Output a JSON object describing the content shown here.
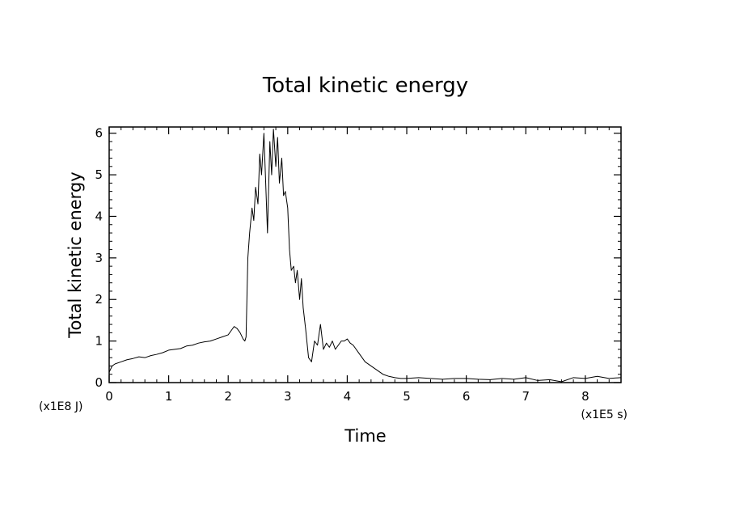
{
  "chart_data": {
    "type": "line",
    "title": "Total kinetic energy",
    "xlabel": "Time",
    "ylabel": "Total kinetic energy",
    "x_multiplier_label": "(x1E5 s)",
    "y_multiplier_label": "(x1E8 J)",
    "xlim": [
      0,
      8.6
    ],
    "ylim": [
      0,
      6.15
    ],
    "x_ticks": [
      "0",
      "1",
      "2",
      "3",
      "4",
      "5",
      "6",
      "7",
      "8"
    ],
    "y_ticks": [
      "0",
      "1",
      "2",
      "3",
      "4",
      "5",
      "6"
    ],
    "grid": false,
    "legend": "none",
    "line_color": "#000000",
    "series": [
      {
        "x": [
          0.0,
          0.05,
          0.1,
          0.2,
          0.3,
          0.4,
          0.5,
          0.6,
          0.7,
          0.8,
          0.9,
          1.0,
          1.1,
          1.2,
          1.3,
          1.4,
          1.5,
          1.6,
          1.7,
          1.8,
          1.9,
          2.0,
          2.05,
          2.1,
          2.15,
          2.2,
          2.25,
          2.28,
          2.3,
          2.33,
          2.36,
          2.4,
          2.43,
          2.46,
          2.5,
          2.53,
          2.56,
          2.6,
          2.63,
          2.66,
          2.7,
          2.73,
          2.76,
          2.8,
          2.83,
          2.86,
          2.9,
          2.93,
          2.96,
          3.0,
          3.03,
          3.06,
          3.1,
          3.13,
          3.16,
          3.2,
          3.23,
          3.26,
          3.3,
          3.35,
          3.4,
          3.45,
          3.5,
          3.55,
          3.6,
          3.65,
          3.7,
          3.75,
          3.8,
          3.85,
          3.9,
          3.95,
          4.0,
          4.05,
          4.1,
          4.2,
          4.3,
          4.4,
          4.5,
          4.6,
          4.7,
          4.8,
          4.9,
          5.0,
          5.2,
          5.4,
          5.6,
          5.8,
          6.0,
          6.2,
          6.4,
          6.6,
          6.8,
          7.0,
          7.2,
          7.4,
          7.6,
          7.8,
          8.0,
          8.2,
          8.4,
          8.6
        ],
        "y": [
          0.25,
          0.4,
          0.45,
          0.5,
          0.55,
          0.58,
          0.62,
          0.6,
          0.65,
          0.68,
          0.72,
          0.78,
          0.8,
          0.82,
          0.88,
          0.9,
          0.95,
          0.98,
          1.0,
          1.05,
          1.1,
          1.15,
          1.25,
          1.35,
          1.3,
          1.2,
          1.05,
          1.0,
          1.1,
          3.0,
          3.6,
          4.2,
          3.9,
          4.7,
          4.3,
          5.5,
          5.0,
          6.0,
          4.8,
          3.6,
          5.8,
          5.0,
          6.1,
          5.2,
          5.9,
          4.8,
          5.4,
          4.5,
          4.6,
          4.2,
          3.2,
          2.7,
          2.8,
          2.4,
          2.7,
          2.0,
          2.5,
          1.8,
          1.3,
          0.6,
          0.5,
          1.0,
          0.9,
          1.4,
          0.8,
          0.95,
          0.85,
          1.0,
          0.8,
          0.9,
          1.0,
          1.0,
          1.05,
          0.95,
          0.9,
          0.7,
          0.5,
          0.4,
          0.3,
          0.2,
          0.15,
          0.12,
          0.1,
          0.1,
          0.12,
          0.1,
          0.08,
          0.1,
          0.1,
          0.08,
          0.07,
          0.1,
          0.08,
          0.12,
          0.05,
          0.07,
          0.02,
          0.12,
          0.1,
          0.15,
          0.1,
          0.12
        ]
      }
    ]
  }
}
